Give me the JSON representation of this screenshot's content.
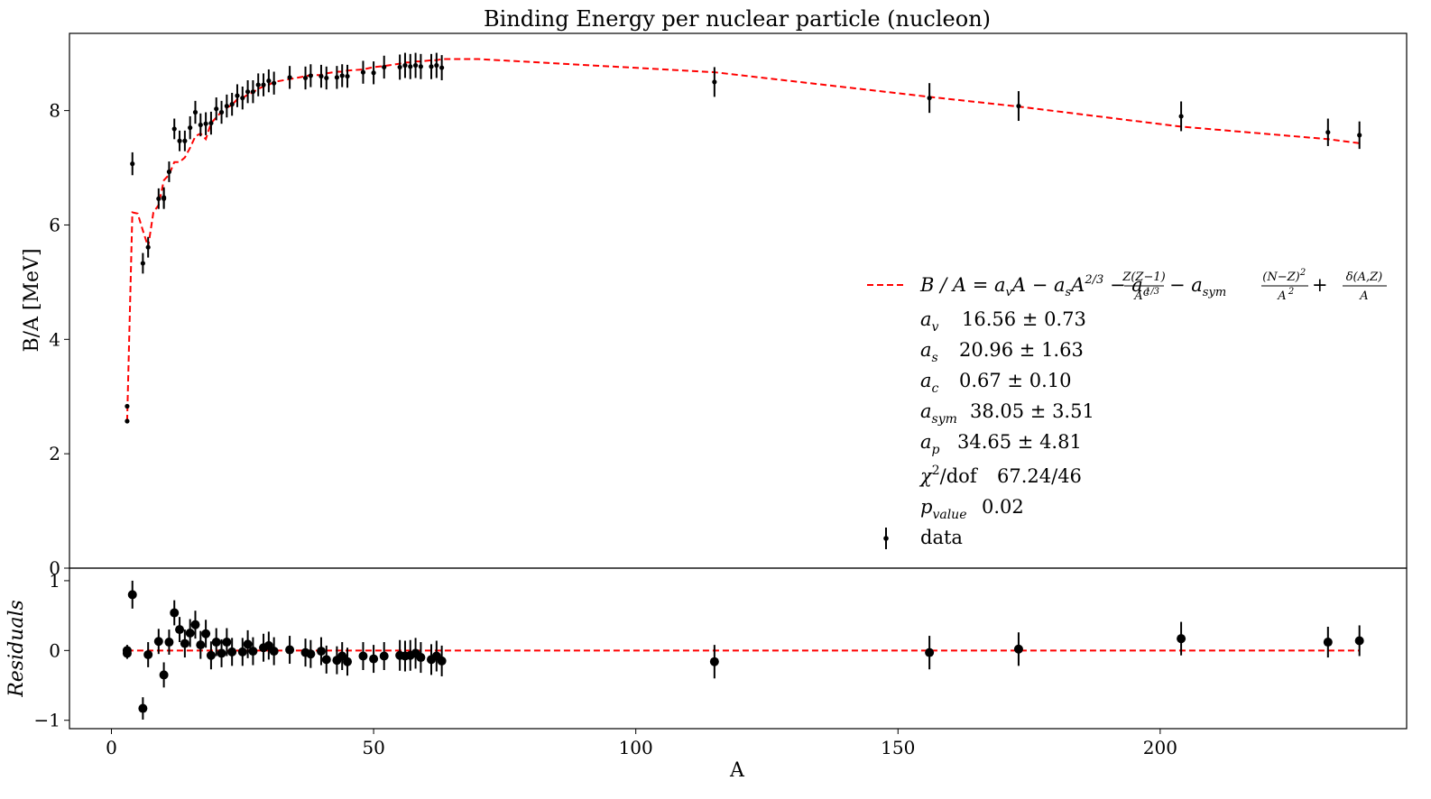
{
  "chart_data": [
    {
      "type": "scatter",
      "panel": "main",
      "title": "Binding Energy per nuclear particle (nucleon)",
      "xlabel": "",
      "ylabel": "B/A [MeV]",
      "xlim": [
        -8,
        247
      ],
      "ylim": [
        0,
        9.35
      ],
      "x_ticks": [
        0,
        50,
        100,
        150,
        200
      ],
      "y_ticks": [
        0,
        2,
        4,
        6,
        8
      ],
      "grid": false,
      "legend_position": "center-right",
      "legend": {
        "fit_label": "B / A = a_v A − a_s A^{2/3} − a_c Z(Z−1)/A^{1/3} − a_sym (N−Z)^2/A^2 + δ(A,Z)/A",
        "fit_formula_parts": {
          "lhs": "B / A = a",
          "v": "v",
          "mid1": "A − a",
          "s": "s",
          "A_pow": "A",
          "pow": "2/3",
          "mid2": " − a",
          "c": "c",
          "frac1_num": "Z(Z−1)",
          "frac1_den": "A",
          "frac1_den_pow": "1/3",
          "mid3": " − a",
          "sym": "sym",
          "frac2_num": "(N−Z)",
          "frac2_num_pow": "2",
          "frac2_den": "A",
          "frac2_den_pow": "2",
          "plus": " + ",
          "frac3_num": "δ(A,Z)",
          "frac3_den": "A"
        },
        "params": [
          {
            "symbol": "a",
            "sub": "v",
            "value": "16.56 ± 0.73"
          },
          {
            "symbol": "a",
            "sub": "s",
            "value": "20.96 ± 1.63"
          },
          {
            "symbol": "a",
            "sub": "c",
            "value": "0.67 ± 0.10"
          },
          {
            "symbol": "a",
            "sub": "sym",
            "value": "38.05 ± 3.51"
          },
          {
            "symbol": "a",
            "sub": "p",
            "value": "34.65 ± 4.81"
          }
        ],
        "chi2": {
          "symbol": "χ",
          "sup": "2",
          "rest": "/dof",
          "value": "67.24/46"
        },
        "pvalue": {
          "symbol": "p",
          "sub": "value",
          "value": "0.02"
        },
        "data_label": "data"
      },
      "series": [
        {
          "kind": "errorbar",
          "color": "#000000",
          "A": [
            3,
            3,
            4,
            6,
            7,
            9,
            10,
            10,
            11,
            12,
            13,
            14,
            15,
            16,
            17,
            18,
            19,
            20,
            21,
            22,
            23,
            24,
            25,
            26,
            27,
            28,
            29,
            30,
            31,
            34,
            37,
            38,
            40,
            41,
            43,
            44,
            45,
            48,
            50,
            52,
            55,
            56,
            57,
            58,
            59,
            61,
            62,
            63,
            115,
            156,
            173,
            204,
            232,
            238
          ],
          "BA": [
            2.57,
            2.83,
            7.07,
            5.33,
            5.61,
            6.46,
            6.46,
            6.48,
            6.93,
            7.68,
            7.47,
            7.47,
            7.7,
            7.97,
            7.75,
            7.77,
            7.78,
            8.03,
            7.97,
            8.08,
            8.11,
            8.26,
            8.22,
            8.33,
            8.33,
            8.45,
            8.45,
            8.52,
            8.48,
            8.58,
            8.57,
            8.61,
            8.6,
            8.57,
            8.58,
            8.61,
            8.6,
            8.67,
            8.66,
            8.76,
            8.76,
            8.79,
            8.77,
            8.79,
            8.77,
            8.77,
            8.79,
            8.75,
            8.5,
            8.22,
            8.08,
            7.9,
            7.62,
            7.57
          ],
          "err": [
            0.03,
            0.03,
            0.2,
            0.18,
            0.18,
            0.18,
            0.18,
            0.18,
            0.18,
            0.18,
            0.18,
            0.18,
            0.2,
            0.2,
            0.2,
            0.2,
            0.2,
            0.2,
            0.2,
            0.2,
            0.2,
            0.2,
            0.2,
            0.2,
            0.2,
            0.2,
            0.2,
            0.2,
            0.2,
            0.2,
            0.2,
            0.2,
            0.2,
            0.2,
            0.2,
            0.2,
            0.2,
            0.2,
            0.2,
            0.2,
            0.22,
            0.22,
            0.22,
            0.22,
            0.22,
            0.22,
            0.22,
            0.22,
            0.26,
            0.26,
            0.26,
            0.26,
            0.24,
            0.24
          ]
        },
        {
          "kind": "fit-line",
          "color": "#ff0000",
          "style": "dashed",
          "A": [
            3,
            4,
            5,
            6,
            7,
            8,
            9,
            10,
            11,
            12,
            13,
            14,
            15,
            16,
            17,
            18,
            19,
            20,
            21,
            22,
            23,
            24,
            25,
            26,
            27,
            28,
            29,
            30,
            31,
            34,
            37,
            38,
            40,
            41,
            43,
            44,
            45,
            48,
            50,
            52,
            55,
            56,
            57,
            58,
            59,
            61,
            62,
            63,
            70,
            115,
            156,
            173,
            204,
            232,
            238
          ],
          "BA": [
            2.57,
            6.22,
            6.2,
            5.9,
            5.62,
            6.22,
            6.35,
            6.78,
            6.88,
            7.1,
            7.1,
            7.18,
            7.35,
            7.55,
            7.6,
            7.5,
            7.78,
            7.88,
            7.98,
            8.05,
            8.1,
            8.2,
            8.22,
            8.28,
            8.32,
            8.38,
            8.42,
            8.45,
            8.5,
            8.55,
            8.6,
            8.62,
            8.62,
            8.65,
            8.68,
            8.68,
            8.7,
            8.72,
            8.76,
            8.78,
            8.82,
            8.84,
            8.84,
            8.86,
            8.86,
            8.88,
            8.88,
            8.9,
            8.9,
            8.67,
            8.24,
            8.07,
            7.72,
            7.5,
            7.43
          ]
        }
      ]
    },
    {
      "type": "scatter",
      "panel": "residuals",
      "title": "",
      "xlabel": "A",
      "ylabel": "Residuals",
      "xlim": [
        -8,
        247
      ],
      "ylim": [
        -1.12,
        1.18
      ],
      "x_ticks": [
        0,
        50,
        100,
        150,
        200
      ],
      "y_ticks": [
        -1,
        0,
        1
      ],
      "grid": false,
      "zero_line": {
        "color": "#ff0000",
        "style": "dashed",
        "value": 0
      },
      "series": [
        {
          "kind": "errorbar",
          "color": "#000000",
          "A": [
            3,
            3,
            4,
            6,
            7,
            9,
            10,
            11,
            12,
            13,
            14,
            15,
            16,
            17,
            18,
            19,
            20,
            21,
            22,
            23,
            25,
            26,
            27,
            29,
            30,
            31,
            34,
            37,
            38,
            40,
            41,
            43,
            44,
            45,
            48,
            50,
            52,
            55,
            56,
            57,
            58,
            59,
            61,
            62,
            63,
            115,
            156,
            173,
            204,
            232,
            238
          ],
          "resid": [
            0.0,
            -0.04,
            0.8,
            -0.83,
            -0.06,
            0.13,
            -0.35,
            0.12,
            0.54,
            0.3,
            0.1,
            0.25,
            0.37,
            0.08,
            0.24,
            -0.07,
            0.12,
            -0.04,
            0.12,
            -0.02,
            -0.02,
            0.09,
            -0.01,
            0.04,
            0.07,
            -0.01,
            0.01,
            -0.03,
            -0.05,
            -0.01,
            -0.13,
            -0.14,
            -0.08,
            -0.16,
            -0.08,
            -0.12,
            -0.08,
            -0.07,
            -0.08,
            -0.07,
            -0.04,
            -0.1,
            -0.13,
            -0.08,
            -0.15,
            -0.16,
            -0.03,
            0.02,
            0.17,
            0.12,
            0.14
          ],
          "err": [
            0.08,
            0.08,
            0.2,
            0.16,
            0.18,
            0.18,
            0.18,
            0.18,
            0.18,
            0.18,
            0.2,
            0.2,
            0.2,
            0.2,
            0.2,
            0.2,
            0.2,
            0.2,
            0.2,
            0.2,
            0.2,
            0.2,
            0.2,
            0.2,
            0.2,
            0.2,
            0.2,
            0.2,
            0.2,
            0.2,
            0.2,
            0.2,
            0.2,
            0.2,
            0.2,
            0.2,
            0.2,
            0.22,
            0.22,
            0.22,
            0.22,
            0.22,
            0.22,
            0.22,
            0.22,
            0.24,
            0.24,
            0.24,
            0.24,
            0.22,
            0.22
          ]
        }
      ]
    }
  ]
}
